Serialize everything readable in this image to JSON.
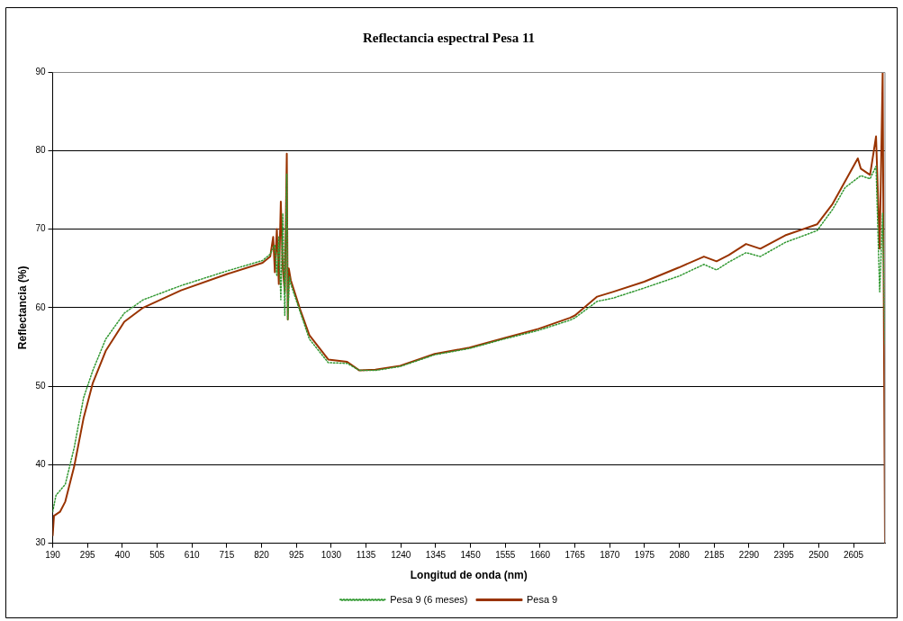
{
  "chart_data": {
    "type": "line",
    "title": "Reflectancia espectral Pesa 11",
    "xlabel": "Longitud de onda (nm)",
    "ylabel": "Reflectancia (%)",
    "xlim": [
      190,
      2700
    ],
    "xticks": [
      190,
      295,
      400,
      505,
      610,
      715,
      820,
      925,
      1030,
      1135,
      1240,
      1345,
      1450,
      1555,
      1660,
      1765,
      1870,
      1975,
      2080,
      2185,
      2290,
      2395,
      2500,
      2605
    ],
    "ylim": [
      30,
      90
    ],
    "yticks": [
      30,
      40,
      50,
      60,
      70,
      80,
      90
    ],
    "grid": "y",
    "legend": "bottom",
    "marker": "none",
    "series": [
      {
        "name": "Pesa 9 (6 meses)",
        "color": "#339933",
        "line_style": "dotted",
        "x": [
          190,
          200,
          228,
          255,
          283,
          311,
          350,
          406,
          463,
          577,
          718,
          823,
          846,
          860,
          866,
          872,
          878,
          884,
          890,
          896,
          899,
          904,
          908,
          936,
          964,
          1021,
          1078,
          1115,
          1163,
          1238,
          1342,
          1447,
          1551,
          1655,
          1750,
          1765,
          1832,
          1879,
          1974,
          2078,
          2154,
          2192,
          2229,
          2281,
          2324,
          2399,
          2495,
          2542,
          2580,
          2627,
          2655,
          2673,
          2684,
          2693,
          2700
        ],
        "values": [
          34,
          36.1,
          37.5,
          42.2,
          48.5,
          52,
          56,
          59.3,
          61,
          62.8,
          64.7,
          66,
          66.8,
          68,
          64,
          69,
          61,
          72,
          59,
          77,
          58.5,
          64,
          63,
          59.5,
          56,
          53,
          52.9,
          52,
          52,
          52.5,
          54,
          54.8,
          56,
          57.1,
          58.4,
          58.7,
          60.8,
          61.2,
          62.5,
          64,
          65.5,
          64.8,
          65.8,
          67,
          66.5,
          68.3,
          69.8,
          72.5,
          75.3,
          76.8,
          76.4,
          78,
          62,
          72,
          55.3
        ]
      },
      {
        "name": "Pesa 9",
        "color": "#993300",
        "line_style": "solid",
        "x": [
          190,
          194,
          212,
          228,
          255,
          283,
          311,
          350,
          406,
          463,
          577,
          718,
          823,
          846,
          855,
          860,
          866,
          872,
          878,
          884,
          890,
          896,
          899,
          902,
          908,
          936,
          964,
          1021,
          1078,
          1115,
          1163,
          1238,
          1342,
          1447,
          1551,
          1655,
          1750,
          1765,
          1832,
          1879,
          1974,
          2078,
          2154,
          2192,
          2229,
          2281,
          2324,
          2399,
          2495,
          2542,
          2580,
          2618,
          2627,
          2655,
          2673,
          2684,
          2693,
          2700
        ],
        "values": [
          31,
          33.5,
          34,
          35.3,
          39.8,
          45.9,
          50.4,
          54.5,
          58.2,
          60,
          62.2,
          64.3,
          65.7,
          66.5,
          69,
          64.5,
          70,
          63,
          73.5,
          65,
          62,
          79.6,
          58.5,
          65,
          63.5,
          59.8,
          56.5,
          53.4,
          53.1,
          52,
          52.1,
          52.6,
          54.1,
          54.9,
          56.1,
          57.3,
          58.7,
          59,
          61.4,
          62,
          63.3,
          65.1,
          66.5,
          65.9,
          66.7,
          68.1,
          67.5,
          69.2,
          70.6,
          73.2,
          76.1,
          79,
          77.7,
          76.9,
          81.8,
          67.5,
          90,
          30
        ]
      }
    ]
  }
}
